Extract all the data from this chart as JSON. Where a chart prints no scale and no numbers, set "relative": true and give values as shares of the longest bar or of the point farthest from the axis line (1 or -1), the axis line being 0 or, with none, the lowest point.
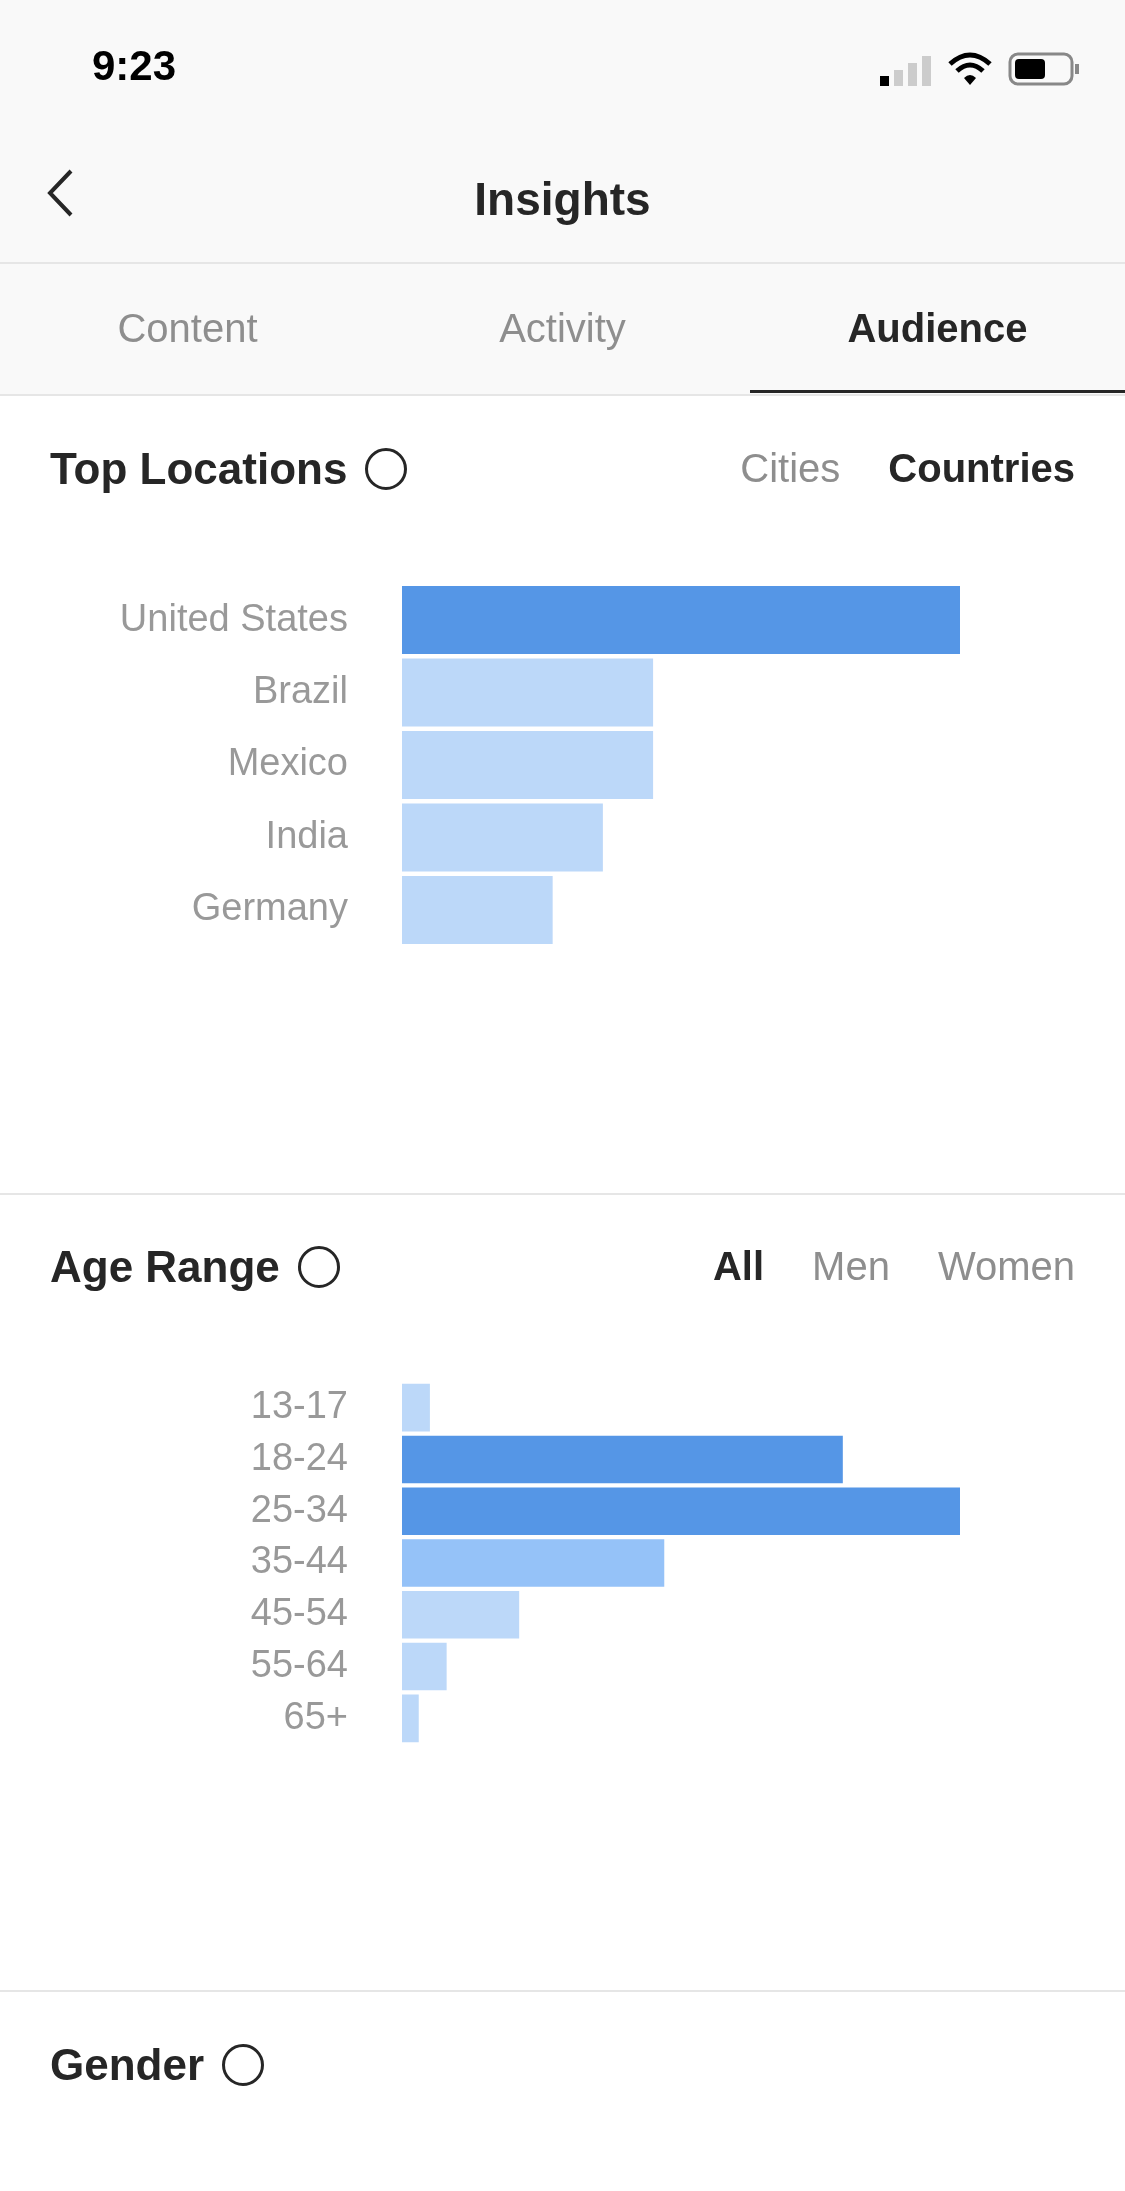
{
  "chart_data": [
    {
      "type": "other",
      "title": "Insights",
      "annotations": [
        "9:23",
        "Content",
        "Activity",
        "Audience"
      ]
    },
    {
      "type": "bar",
      "orientation": "horizontal",
      "relative": true,
      "title": "Top Locations",
      "annotations": [
        "Cities",
        "Countries"
      ],
      "categories": [
        "United States",
        "Brazil",
        "Mexico",
        "India",
        "Germany"
      ],
      "values": [
        1,
        0.45,
        0.45,
        0.36,
        0.27
      ],
      "colors": [
        "#5596e6",
        "#bcd8f9",
        "#bcd8f9",
        "#bcd8f9",
        "#bcd8f9"
      ]
    },
    {
      "type": "bar",
      "orientation": "horizontal",
      "relative": true,
      "title": "Age Range",
      "annotations": [
        "All",
        "Men",
        "Women"
      ],
      "categories": [
        "13-17",
        "18-24",
        "25-34",
        "35-44",
        "45-54",
        "55-64",
        "65+"
      ],
      "values": [
        0.05,
        0.79,
        1,
        0.47,
        0.21,
        0.08,
        0.03
      ],
      "colors": [
        "#bcd8f9",
        "#5596e6",
        "#5596e6",
        "#95c2f8",
        "#bcd8f9",
        "#bcd8f9",
        "#bcd8f9"
      ]
    },
    {
      "type": "other",
      "title": "Gender"
    }
  ]
}
